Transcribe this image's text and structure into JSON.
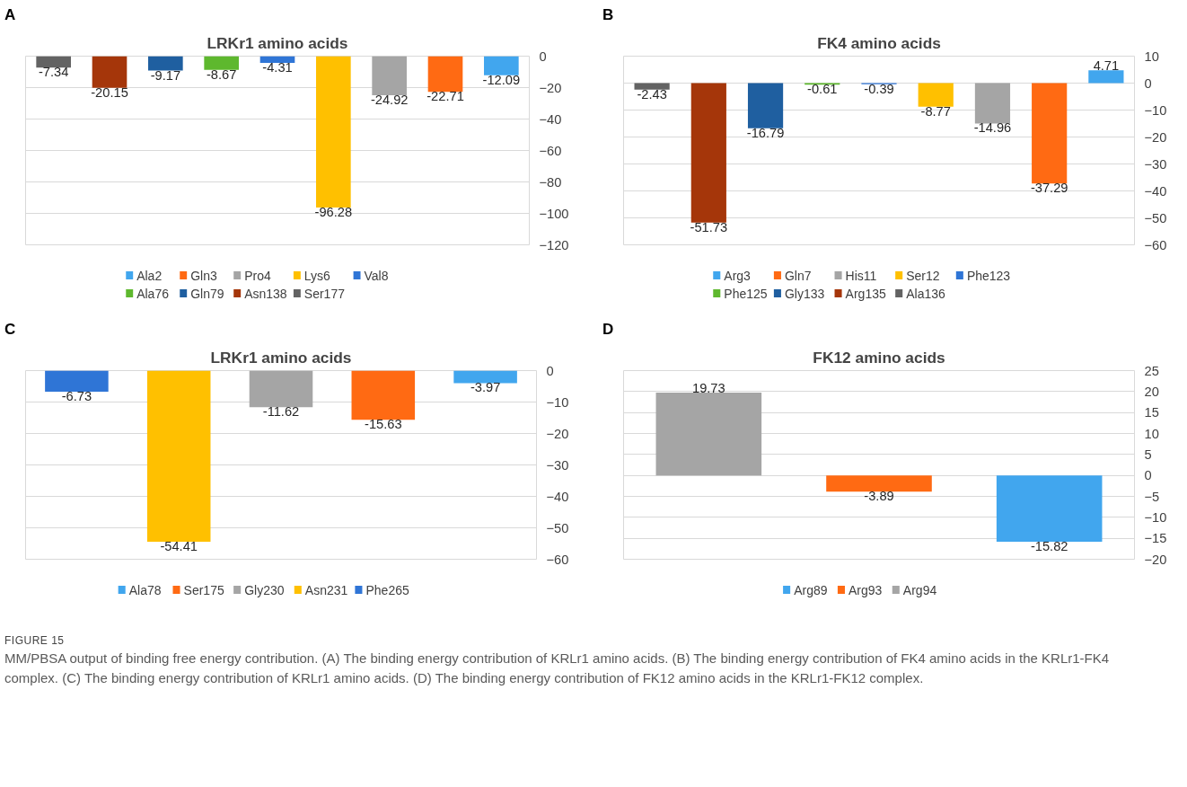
{
  "chart_data": [
    {
      "type": "bar",
      "title": "LRKr1 amino acids",
      "annotations": [
        "A"
      ],
      "categories": [
        null,
        null,
        null,
        null,
        null,
        null,
        null,
        null,
        null
      ],
      "series": [
        {
          "name": "Ala2",
          "color": "#41a6ee",
          "values": [
            null,
            null,
            null,
            null,
            null,
            null,
            null,
            null,
            -12.09
          ]
        },
        {
          "name": "Gln3",
          "color": "#ff6a13",
          "values": [
            null,
            null,
            null,
            null,
            null,
            null,
            null,
            -22.71,
            null
          ]
        },
        {
          "name": "Pro4",
          "color": "#a5a5a5",
          "values": [
            null,
            null,
            null,
            null,
            null,
            null,
            -24.92,
            null,
            null
          ]
        },
        {
          "name": "Lys6",
          "color": "#ffc000",
          "values": [
            null,
            null,
            null,
            null,
            null,
            -96.28,
            null,
            null,
            null
          ]
        },
        {
          "name": "Val8",
          "color": "#2f75d6",
          "values": [
            null,
            null,
            null,
            null,
            -4.31,
            null,
            null,
            null,
            null
          ]
        },
        {
          "name": "Ala76",
          "color": "#5eb82e",
          "values": [
            null,
            null,
            null,
            -8.67,
            null,
            null,
            null,
            null,
            null
          ]
        },
        {
          "name": "Gln79",
          "color": "#1f5fa0",
          "values": [
            null,
            null,
            -9.17,
            null,
            null,
            null,
            null,
            null,
            null
          ]
        },
        {
          "name": "Asn138",
          "color": "#a5360a",
          "values": [
            null,
            -20.15,
            null,
            null,
            null,
            null,
            null,
            null,
            null
          ]
        },
        {
          "name": "Ser177",
          "color": "#636363",
          "values": [
            -7.34,
            null,
            null,
            null,
            null,
            null,
            null,
            null,
            null
          ]
        }
      ],
      "stacked": true,
      "ylim": [
        -120,
        0
      ],
      "yticks": [
        0,
        -20,
        -40,
        -60,
        -80,
        -100,
        -120
      ],
      "grid": "y",
      "legend": "bottom",
      "tick_labels": "y",
      "data_labels": true
    },
    {
      "type": "bar",
      "title": "FK4 amino acids",
      "annotations": [
        "B"
      ],
      "categories": [
        null,
        null,
        null,
        null,
        null,
        null,
        null,
        null,
        null
      ],
      "series": [
        {
          "name": "Arg3",
          "color": "#41a6ee",
          "values": [
            null,
            null,
            null,
            null,
            null,
            null,
            null,
            null,
            4.71
          ]
        },
        {
          "name": "Gln7",
          "color": "#ff6a13",
          "values": [
            null,
            null,
            null,
            null,
            null,
            null,
            null,
            -37.29,
            null
          ]
        },
        {
          "name": "His11",
          "color": "#a5a5a5",
          "values": [
            null,
            null,
            null,
            null,
            null,
            null,
            -14.96,
            null,
            null
          ]
        },
        {
          "name": "Ser12",
          "color": "#ffc000",
          "values": [
            null,
            null,
            null,
            null,
            null,
            -8.77,
            null,
            null,
            null
          ]
        },
        {
          "name": "Phe123",
          "color": "#2f75d6",
          "values": [
            null,
            null,
            null,
            null,
            -0.39,
            null,
            null,
            null,
            null
          ]
        },
        {
          "name": "Phe125",
          "color": "#5eb82e",
          "values": [
            null,
            null,
            null,
            -0.61,
            null,
            null,
            null,
            null,
            null
          ]
        },
        {
          "name": "Gly133",
          "color": "#1f5fa0",
          "values": [
            null,
            null,
            -16.79,
            null,
            null,
            null,
            null,
            null,
            null
          ]
        },
        {
          "name": "Arg135",
          "color": "#a5360a",
          "values": [
            null,
            -51.73,
            null,
            null,
            null,
            null,
            null,
            null,
            null
          ]
        },
        {
          "name": "Ala136",
          "color": "#636363",
          "values": [
            -2.43,
            null,
            null,
            null,
            null,
            null,
            null,
            null,
            null
          ]
        }
      ],
      "stacked": true,
      "ylim": [
        -60,
        10
      ],
      "yticks": [
        10,
        0,
        -10,
        -20,
        -30,
        -40,
        -50,
        -60
      ],
      "grid": "y",
      "legend": "bottom",
      "tick_labels": "y",
      "data_labels": true
    },
    {
      "type": "bar",
      "title": "LRKr1 amino acids",
      "annotations": [
        "C"
      ],
      "categories": [
        null,
        null,
        null,
        null,
        null
      ],
      "series": [
        {
          "name": "Ala78",
          "color": "#41a6ee",
          "values": [
            null,
            null,
            null,
            null,
            -3.97
          ]
        },
        {
          "name": "Ser175",
          "color": "#ff6a13",
          "values": [
            null,
            null,
            null,
            -15.63,
            null
          ]
        },
        {
          "name": "Gly230",
          "color": "#a5a5a5",
          "values": [
            null,
            null,
            -11.62,
            null,
            null
          ]
        },
        {
          "name": "Asn231",
          "color": "#ffc000",
          "values": [
            null,
            -54.41,
            null,
            null,
            null
          ]
        },
        {
          "name": "Phe265",
          "color": "#2f75d6",
          "values": [
            -6.73,
            null,
            null,
            null,
            null
          ]
        }
      ],
      "stacked": true,
      "ylim": [
        -60,
        0
      ],
      "yticks": [
        0,
        -10,
        -20,
        -30,
        -40,
        -50,
        -60
      ],
      "grid": "y",
      "legend": "bottom",
      "tick_labels": "y",
      "data_labels": true
    },
    {
      "type": "bar",
      "title": "FK12 amino acids",
      "annotations": [
        "D",
        "FIGURE 15",
        "MM/PBSA output of binding free energy contribution. (A) The binding energy contribution of KRLr1 amino acids. (B) The binding energy contribution of FK4 amino acids in the KRLr1-FK4 complex. (C) The binding energy contribution of KRLr1 amino acids. (D) The binding energy contribution of FK12 amino acids in the KRLr1-FK12 complex."
      ],
      "categories": [
        null,
        null,
        null
      ],
      "series": [
        {
          "name": "Arg89",
          "color": "#41a6ee",
          "values": [
            null,
            null,
            -15.82
          ]
        },
        {
          "name": "Arg93",
          "color": "#ff6a13",
          "values": [
            null,
            -3.89,
            null
          ]
        },
        {
          "name": "Arg94",
          "color": "#a5a5a5",
          "values": [
            19.73,
            null,
            null
          ]
        }
      ],
      "stacked": true,
      "ylim": [
        -20,
        25
      ],
      "yticks": [
        25,
        20,
        15,
        10,
        5,
        0,
        -5,
        -10,
        -15,
        -20
      ],
      "grid": "y",
      "legend": "bottom",
      "tick_labels": "y",
      "data_labels": true
    }
  ]
}
